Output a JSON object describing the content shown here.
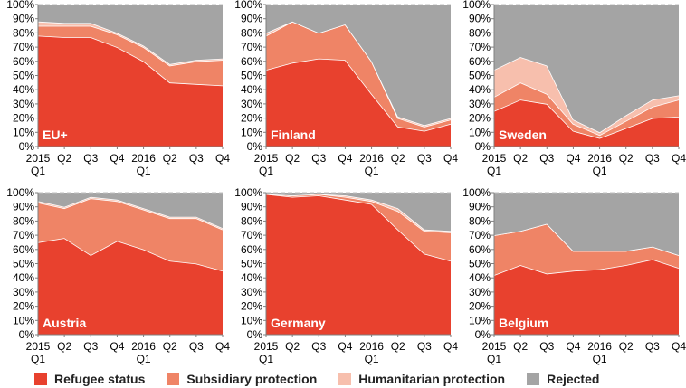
{
  "colors": {
    "refugee": "#e8412e",
    "subsidiary": "#ef8466",
    "humanitarian": "#f7bfad",
    "rejected": "#a4a4a4"
  },
  "legend": [
    {
      "key": "refugee",
      "label": "Refugee status"
    },
    {
      "key": "subsidiary",
      "label": "Subsidiary protection"
    },
    {
      "key": "humanitarian",
      "label": "Humanitarian protection"
    },
    {
      "key": "rejected",
      "label": "Rejected"
    }
  ],
  "chart_data": [
    {
      "type": "area",
      "stacked": true,
      "title": "EU+",
      "categories": [
        "2015 Q1",
        "Q2",
        "Q3",
        "Q4",
        "2016 Q1",
        "Q2",
        "Q3",
        "Q4"
      ],
      "ylim": [
        0,
        100
      ],
      "y_unit": "%",
      "yticks": [
        0,
        10,
        20,
        30,
        40,
        50,
        60,
        70,
        80,
        90,
        100
      ],
      "series": [
        {
          "name": "Refugee status",
          "key": "refugee",
          "values": [
            78,
            77,
            77,
            70,
            60,
            45,
            44,
            43
          ]
        },
        {
          "name": "Subsidiary protection",
          "key": "subsidiary",
          "values": [
            7,
            8,
            8,
            9,
            10,
            12,
            16,
            18
          ]
        },
        {
          "name": "Humanitarian protection",
          "key": "humanitarian",
          "values": [
            3,
            2,
            2,
            1,
            1,
            1,
            1,
            1
          ]
        },
        {
          "name": "Rejected",
          "key": "rejected",
          "values": [
            12,
            13,
            13,
            20,
            29,
            42,
            39,
            38
          ]
        }
      ]
    },
    {
      "type": "area",
      "stacked": true,
      "title": "Finland",
      "categories": [
        "2015 Q1",
        "Q2",
        "Q3",
        "Q4",
        "2016 Q1",
        "Q2",
        "Q3",
        "Q4"
      ],
      "ylim": [
        0,
        100
      ],
      "y_unit": "%",
      "yticks": [
        0,
        10,
        20,
        30,
        40,
        50,
        60,
        70,
        80,
        90,
        100
      ],
      "series": [
        {
          "name": "Refugee status",
          "key": "refugee",
          "values": [
            54,
            59,
            62,
            61,
            37,
            14,
            11,
            16
          ]
        },
        {
          "name": "Subsidiary protection",
          "key": "subsidiary",
          "values": [
            24,
            29,
            18,
            25,
            23,
            6,
            3,
            3
          ]
        },
        {
          "name": "Humanitarian protection",
          "key": "humanitarian",
          "values": [
            2,
            0,
            0,
            0,
            0,
            1,
            1,
            1
          ]
        },
        {
          "name": "Rejected",
          "key": "rejected",
          "values": [
            20,
            12,
            20,
            14,
            40,
            79,
            85,
            80
          ]
        }
      ]
    },
    {
      "type": "area",
      "stacked": true,
      "title": "Sweden",
      "categories": [
        "2015 Q1",
        "Q2",
        "Q3",
        "Q4",
        "2016 Q1",
        "Q2",
        "Q3",
        "Q4"
      ],
      "ylim": [
        0,
        100
      ],
      "y_unit": "%",
      "yticks": [
        0,
        10,
        20,
        30,
        40,
        50,
        60,
        70,
        80,
        90,
        100
      ],
      "series": [
        {
          "name": "Refugee status",
          "key": "refugee",
          "values": [
            25,
            33,
            30,
            11,
            6,
            13,
            20,
            21
          ]
        },
        {
          "name": "Subsidiary protection",
          "key": "subsidiary",
          "values": [
            10,
            12,
            7,
            5,
            2,
            5,
            8,
            12
          ]
        },
        {
          "name": "Humanitarian protection",
          "key": "humanitarian",
          "values": [
            19,
            18,
            20,
            3,
            2,
            4,
            5,
            3
          ]
        },
        {
          "name": "Rejected",
          "key": "rejected",
          "values": [
            46,
            37,
            43,
            81,
            90,
            78,
            67,
            64
          ]
        }
      ]
    },
    {
      "type": "area",
      "stacked": true,
      "title": "Austria",
      "categories": [
        "2015 Q1",
        "Q2",
        "Q3",
        "Q4",
        "2016 Q1",
        "Q2",
        "Q3",
        "Q4"
      ],
      "ylim": [
        0,
        100
      ],
      "y_unit": "%",
      "yticks": [
        0,
        10,
        20,
        30,
        40,
        50,
        60,
        70,
        80,
        90,
        100
      ],
      "series": [
        {
          "name": "Refugee status",
          "key": "refugee",
          "values": [
            65,
            68,
            56,
            66,
            60,
            52,
            50,
            45
          ]
        },
        {
          "name": "Subsidiary protection",
          "key": "subsidiary",
          "values": [
            28,
            21,
            40,
            28,
            28,
            30,
            32,
            29
          ]
        },
        {
          "name": "Humanitarian protection",
          "key": "humanitarian",
          "values": [
            1,
            1,
            1,
            1,
            1,
            1,
            1,
            1
          ]
        },
        {
          "name": "Rejected",
          "key": "rejected",
          "values": [
            6,
            10,
            3,
            5,
            11,
            17,
            17,
            25
          ]
        }
      ]
    },
    {
      "type": "area",
      "stacked": true,
      "title": "Germany",
      "categories": [
        "2015 Q1",
        "Q2",
        "Q3",
        "Q4",
        "2016 Q1",
        "Q2",
        "Q3",
        "Q4"
      ],
      "ylim": [
        0,
        100
      ],
      "y_unit": "%",
      "yticks": [
        0,
        10,
        20,
        30,
        40,
        50,
        60,
        70,
        80,
        90,
        100
      ],
      "series": [
        {
          "name": "Refugee status",
          "key": "refugee",
          "values": [
            99,
            97,
            98,
            95,
            92,
            74,
            57,
            52
          ]
        },
        {
          "name": "Subsidiary protection",
          "key": "subsidiary",
          "values": [
            0,
            1,
            1,
            2,
            2,
            13,
            16,
            20
          ]
        },
        {
          "name": "Humanitarian protection",
          "key": "humanitarian",
          "values": [
            0,
            0,
            0,
            1,
            1,
            2,
            1,
            1
          ]
        },
        {
          "name": "Rejected",
          "key": "rejected",
          "values": [
            1,
            2,
            1,
            2,
            5,
            11,
            26,
            27
          ]
        }
      ]
    },
    {
      "type": "area",
      "stacked": true,
      "title": "Belgium",
      "categories": [
        "2015 Q1",
        "Q2",
        "Q3",
        "Q4",
        "2016 Q1",
        "Q2",
        "Q3",
        "Q4"
      ],
      "ylim": [
        0,
        100
      ],
      "y_unit": "%",
      "yticks": [
        0,
        10,
        20,
        30,
        40,
        50,
        60,
        70,
        80,
        90,
        100
      ],
      "series": [
        {
          "name": "Refugee status",
          "key": "refugee",
          "values": [
            42,
            49,
            43,
            45,
            46,
            49,
            53,
            47
          ]
        },
        {
          "name": "Subsidiary protection",
          "key": "subsidiary",
          "values": [
            28,
            24,
            35,
            14,
            13,
            10,
            9,
            9
          ]
        },
        {
          "name": "Humanitarian protection",
          "key": "humanitarian",
          "values": [
            0,
            0,
            0,
            0,
            0,
            0,
            0,
            0
          ]
        },
        {
          "name": "Rejected",
          "key": "rejected",
          "values": [
            30,
            27,
            22,
            41,
            41,
            41,
            38,
            44
          ]
        }
      ]
    }
  ]
}
